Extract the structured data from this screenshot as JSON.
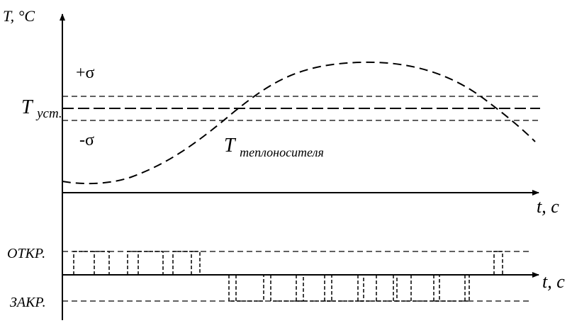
{
  "labels": {
    "y_axis": "T, °C",
    "t_axis_top": "t, c",
    "t_axis_bottom": "t, c",
    "plus_sigma": "+σ",
    "minus_sigma": "-σ",
    "t_set_main": "T",
    "t_set_sub": "уст.",
    "t_carrier_main": "T",
    "t_carrier_sub": "теплоносителя",
    "open_level": "ОТКР.",
    "closed_level": "ЗАКР."
  }
}
